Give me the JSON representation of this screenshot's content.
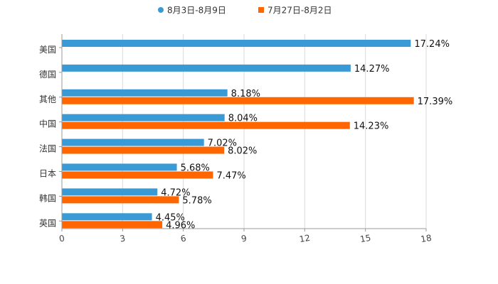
{
  "chart_data": {
    "type": "bar",
    "orientation": "horizontal",
    "categories": [
      "美国",
      "德国",
      "其他",
      "中国",
      "法国",
      "日本",
      "韩国",
      "英国"
    ],
    "series": [
      {
        "name": "8月3日-8月9日",
        "color": "#3a9ad6",
        "values": [
          17.24,
          14.27,
          8.18,
          8.04,
          7.02,
          5.68,
          4.72,
          4.45
        ],
        "labels": [
          "17.24%",
          "14.27%",
          "8.18%",
          "8.04%",
          "7.02%",
          "5.68%",
          "4.72%",
          "4.45%"
        ]
      },
      {
        "name": "7月27日-8月2日",
        "color": "#ff6600",
        "values": [
          null,
          null,
          17.39,
          14.23,
          8.02,
          7.47,
          5.78,
          4.96
        ],
        "labels": [
          "",
          "",
          "17.39%",
          "14.23%",
          "8.02%",
          "7.47%",
          "5.78%",
          "4.96%"
        ]
      }
    ],
    "xlim": [
      0,
      18
    ],
    "xticks": [
      0,
      3,
      6,
      9,
      12,
      15,
      18
    ],
    "xtick_labels": [
      "0",
      "3",
      "6",
      "9",
      "12",
      "15",
      "18"
    ],
    "grid": true,
    "legend_position": "top-center"
  }
}
